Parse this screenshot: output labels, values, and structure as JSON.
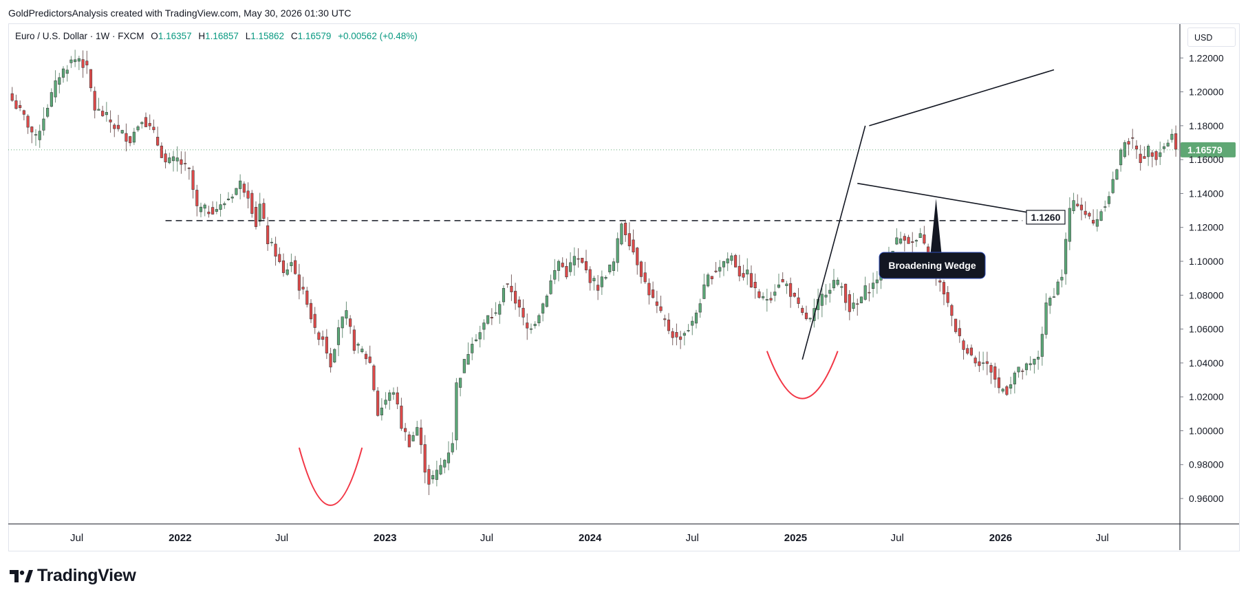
{
  "header": {
    "credit": "GoldPredictorsAnalysis created with TradingView.com, May 30, 2026 01:30 UTC"
  },
  "legend": {
    "symbol": "Euro / U.S. Dollar · 1W · FXCM",
    "open_label": "O",
    "open": "1.16357",
    "high_label": "H",
    "high": "1.16857",
    "low_label": "L",
    "low": "1.15862",
    "close_label": "C",
    "close": "1.16579",
    "change": "+0.00562 (+0.48%)"
  },
  "currency": "USD",
  "logo": {
    "text": "TradingView",
    "icon": "tradingview-logo-icon"
  },
  "colors": {
    "up": "#089981",
    "up_fill": "#5ba978",
    "down": "#e04a4a",
    "grid": "#e0e3eb",
    "text": "#131722",
    "price_tag": "#5fa774",
    "annotation": "#131722",
    "curve": "#f23645"
  },
  "chart_data": {
    "type": "candlestick",
    "instrument": "EUR/USD",
    "timeframe": "1W",
    "ylim": [
      0.945,
      1.24
    ],
    "y_ticks": [
      "1.22000",
      "1.20000",
      "1.18000",
      "1.16000",
      "1.14000",
      "1.12000",
      "1.10000",
      "1.08000",
      "1.06000",
      "1.04000",
      "1.02000",
      "1.00000",
      "0.98000",
      "0.96000"
    ],
    "y_tick_values": [
      1.22,
      1.2,
      1.18,
      1.16,
      1.14,
      1.12,
      1.1,
      1.08,
      1.06,
      1.04,
      1.02,
      1.0,
      0.98,
      0.96
    ],
    "x_ticks": [
      {
        "label": "Jul",
        "date": "2021-07-01"
      },
      {
        "label": "2022",
        "date": "2022-01-01"
      },
      {
        "label": "Jul",
        "date": "2022-07-01"
      },
      {
        "label": "2023",
        "date": "2023-01-01"
      },
      {
        "label": "Jul",
        "date": "2023-07-01"
      },
      {
        "label": "2024",
        "date": "2024-01-01"
      },
      {
        "label": "Jul",
        "date": "2024-07-01"
      },
      {
        "label": "2025",
        "date": "2025-01-01"
      },
      {
        "label": "Jul",
        "date": "2025-07-01"
      },
      {
        "label": "2026",
        "date": "2026-01-01"
      },
      {
        "label": "Jul",
        "date": "2026-07-01"
      }
    ],
    "x_range": [
      "2021-03-01",
      "2026-11-15"
    ],
    "last_price": "1.16579",
    "last_price_value": 1.16579,
    "path_start": "2021-03-08",
    "weekly_closes_path": [
      [
        0,
        1.195
      ],
      [
        3,
        1.185
      ],
      [
        6,
        1.172
      ],
      [
        9,
        1.192
      ],
      [
        12,
        1.21
      ],
      [
        15,
        1.218
      ],
      [
        17,
        1.22
      ],
      [
        19,
        1.213
      ],
      [
        21,
        1.19
      ],
      [
        24,
        1.185
      ],
      [
        27,
        1.177
      ],
      [
        30,
        1.172
      ],
      [
        33,
        1.185
      ],
      [
        36,
        1.175
      ],
      [
        39,
        1.158
      ],
      [
        42,
        1.16
      ],
      [
        45,
        1.153
      ],
      [
        47,
        1.131
      ],
      [
        50,
        1.13
      ],
      [
        53,
        1.132
      ],
      [
        56,
        1.14
      ],
      [
        58,
        1.146
      ],
      [
        60,
        1.14
      ],
      [
        62,
        1.122
      ],
      [
        63,
        1.133
      ],
      [
        65,
        1.112
      ],
      [
        67,
        1.105
      ],
      [
        69,
        1.092
      ],
      [
        71,
        1.1
      ],
      [
        73,
        1.085
      ],
      [
        75,
        1.077
      ],
      [
        77,
        1.058
      ],
      [
        79,
        1.055
      ],
      [
        81,
        1.04
      ],
      [
        83,
        1.062
      ],
      [
        85,
        1.068
      ],
      [
        87,
        1.05
      ],
      [
        89,
        1.047
      ],
      [
        91,
        1.04
      ],
      [
        93,
        1.01
      ],
      [
        95,
        1.018
      ],
      [
        97,
        1.024
      ],
      [
        99,
        1.003
      ],
      [
        101,
        0.993
      ],
      [
        103,
        1.002
      ],
      [
        105,
        0.978
      ],
      [
        106,
        0.97
      ],
      [
        108,
        0.975
      ],
      [
        110,
        0.983
      ],
      [
        112,
        0.994
      ],
      [
        113,
        1.027
      ],
      [
        115,
        1.04
      ],
      [
        117,
        1.054
      ],
      [
        119,
        1.058
      ],
      [
        121,
        1.067
      ],
      [
        123,
        1.068
      ],
      [
        125,
        1.085
      ],
      [
        127,
        1.083
      ],
      [
        129,
        1.071
      ],
      [
        131,
        1.06
      ],
      [
        133,
        1.065
      ],
      [
        135,
        1.075
      ],
      [
        137,
        1.088
      ],
      [
        139,
        1.1
      ],
      [
        141,
        1.093
      ],
      [
        143,
        1.102
      ],
      [
        145,
        1.098
      ],
      [
        147,
        1.09
      ],
      [
        149,
        1.085
      ],
      [
        151,
        1.093
      ],
      [
        153,
        1.099
      ],
      [
        155,
        1.123
      ],
      [
        157,
        1.112
      ],
      [
        159,
        1.1
      ],
      [
        161,
        1.087
      ],
      [
        163,
        1.077
      ],
      [
        165,
        1.068
      ],
      [
        167,
        1.06
      ],
      [
        169,
        1.054
      ],
      [
        171,
        1.058
      ],
      [
        173,
        1.063
      ],
      [
        175,
        1.077
      ],
      [
        177,
        1.09
      ],
      [
        179,
        1.095
      ],
      [
        181,
        1.1
      ],
      [
        183,
        1.103
      ],
      [
        185,
        1.093
      ],
      [
        187,
        1.092
      ],
      [
        189,
        1.082
      ],
      [
        191,
        1.077
      ],
      [
        193,
        1.08
      ],
      [
        195,
        1.088
      ],
      [
        197,
        1.086
      ],
      [
        199,
        1.077
      ],
      [
        201,
        1.068
      ],
      [
        203,
        1.065
      ],
      [
        205,
        1.075
      ],
      [
        207,
        1.083
      ],
      [
        209,
        1.088
      ],
      [
        211,
        1.085
      ],
      [
        213,
        1.072
      ],
      [
        215,
        1.074
      ],
      [
        217,
        1.083
      ],
      [
        219,
        1.086
      ],
      [
        221,
        1.095
      ],
      [
        223,
        1.105
      ],
      [
        225,
        1.112
      ],
      [
        227,
        1.115
      ],
      [
        229,
        1.11
      ],
      [
        231,
        1.114
      ],
      [
        233,
        1.103
      ],
      [
        235,
        1.09
      ],
      [
        237,
        1.082
      ],
      [
        239,
        1.066
      ],
      [
        241,
        1.054
      ],
      [
        243,
        1.047
      ],
      [
        245,
        1.042
      ],
      [
        247,
        1.04
      ],
      [
        249,
        1.036
      ],
      [
        251,
        1.025
      ],
      [
        253,
        1.024
      ],
      [
        255,
        1.034
      ],
      [
        257,
        1.036
      ],
      [
        259,
        1.038
      ],
      [
        261,
        1.044
      ],
      [
        263,
        1.073
      ],
      [
        265,
        1.082
      ],
      [
        267,
        1.092
      ],
      [
        269,
        1.131
      ],
      [
        271,
        1.135
      ],
      [
        273,
        1.128
      ],
      [
        275,
        1.122
      ],
      [
        277,
        1.13
      ],
      [
        279,
        1.14
      ],
      [
        281,
        1.155
      ],
      [
        283,
        1.172
      ],
      [
        285,
        1.17
      ],
      [
        287,
        1.16
      ],
      [
        289,
        1.166
      ],
      [
        291,
        1.163
      ],
      [
        293,
        1.168
      ],
      [
        295,
        1.174
      ],
      [
        297,
        1.164
      ],
      [
        299,
        1.16
      ],
      [
        301,
        1.154
      ],
      [
        303,
        1.163
      ],
      [
        305,
        1.158
      ],
      [
        307,
        1.172
      ],
      [
        309,
        1.175
      ],
      [
        311,
        1.163
      ],
      [
        313,
        1.17
      ],
      [
        315,
        1.185
      ],
      [
        317,
        1.178
      ],
      [
        319,
        1.18
      ],
      [
        321,
        1.16
      ],
      [
        323,
        1.15
      ],
      [
        325,
        1.153
      ],
      [
        327,
        1.165
      ],
      [
        329,
        1.174
      ],
      [
        331,
        1.172
      ],
      [
        333,
        1.176
      ],
      [
        335,
        1.163
      ],
      [
        336,
        1.166
      ]
    ],
    "annotations": [
      {
        "type": "label",
        "text": "Broadening Wedge"
      },
      {
        "type": "level",
        "text": "1.1260",
        "value": 1.126
      },
      {
        "type": "horizontal-dashed",
        "value": 1.124,
        "from": "2021-12-06",
        "to": "2026-02-09"
      },
      {
        "type": "trendline-upper",
        "from": [
          "2025-05-12",
          1.18
        ],
        "to": [
          "2026-04-06",
          1.213
        ]
      },
      {
        "type": "trendline-lower",
        "from": [
          "2025-04-21",
          1.146
        ],
        "to": [
          "2026-02-16",
          1.129
        ]
      },
      {
        "type": "trendline-rally",
        "from": [
          "2025-01-13",
          1.042
        ],
        "to": [
          "2025-05-05",
          1.18
        ]
      },
      {
        "type": "rounded-bottom",
        "from": [
          "2022-08-01",
          0.99
        ],
        "low": [
          "2022-09-26",
          0.956
        ],
        "to": [
          "2022-11-21",
          0.99
        ]
      },
      {
        "type": "rounded-bottom",
        "from": [
          "2024-11-11",
          1.047
        ],
        "low": [
          "2025-01-13",
          1.019
        ],
        "to": [
          "2025-03-17",
          1.047
        ]
      }
    ]
  }
}
